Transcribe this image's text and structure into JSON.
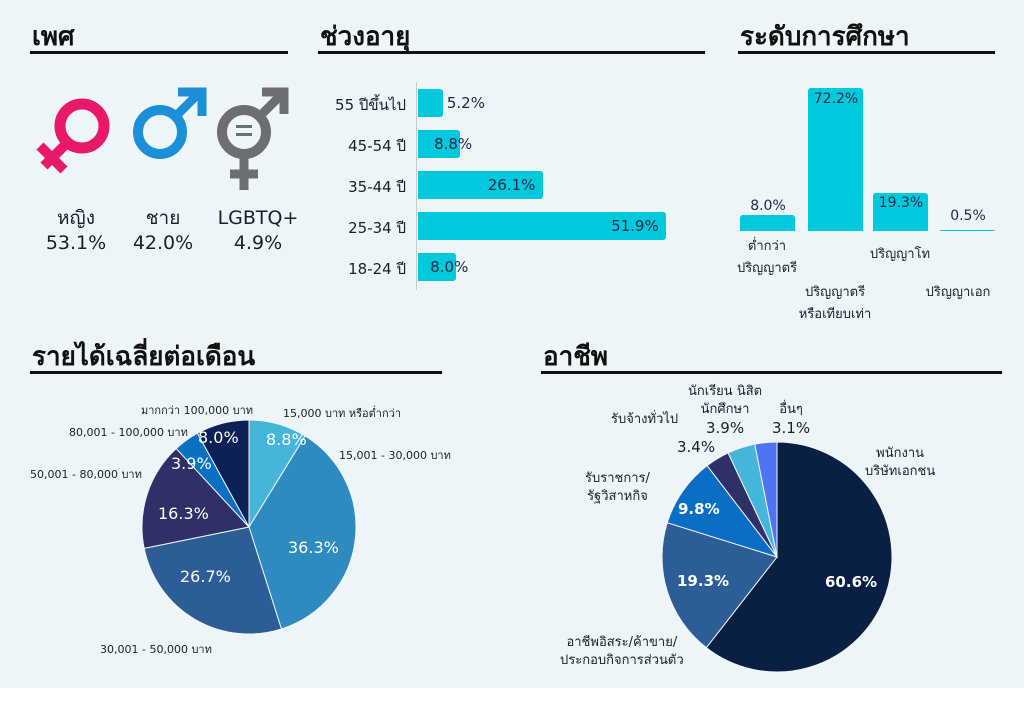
{
  "gender": {
    "title": "เพศ",
    "items": [
      {
        "label": "หญิง",
        "value": "53.1%",
        "icon": "female-icon",
        "color": "#e8196a"
      },
      {
        "label": "ชาย",
        "value": "42.0%",
        "icon": "male-icon",
        "color": "#1b8fd8"
      },
      {
        "label": "LGBTQ+",
        "value": "4.9%",
        "icon": "lgbtq-icon",
        "color": "#6d6e71"
      }
    ]
  },
  "chart_data": [
    {
      "type": "bar",
      "title": "ช่วงอายุ",
      "orientation": "horizontal",
      "categories": [
        "55 ปีขึ้นไป",
        "45-54 ปี",
        "35-44 ปี",
        "25-34 ปี",
        "18-24 ปี"
      ],
      "values": [
        5.2,
        8.8,
        26.1,
        51.9,
        8.0
      ],
      "labels": [
        "5.2%",
        "8.8%",
        "26.1%",
        "51.9%",
        "8.0%"
      ],
      "color": "#00c8dd"
    },
    {
      "type": "bar",
      "title": "ระดับการศึกษา",
      "categories": [
        "ต่ำกว่าปริญญาตรี",
        "ปริญญาตรีหรือเทียบเท่า",
        "ปริญญาโท",
        "ปริญญาเอก"
      ],
      "values": [
        8.0,
        72.2,
        19.3,
        0.5
      ],
      "labels": [
        "8.0%",
        "72.2%",
        "19.3%",
        "0.5%"
      ],
      "color": "#00c8dd"
    },
    {
      "type": "pie",
      "title": "รายได้เฉลี่ยต่อเดือน",
      "categories": [
        "15,000 บาท หรือต่ำกว่า",
        "15,001 - 30,000 บาท",
        "30,001 - 50,000 บาท",
        "50,001 - 80,000 บาท",
        "80,001 - 100,000 บาท",
        "มากกว่า 100,000 บาท"
      ],
      "values": [
        8.8,
        36.3,
        26.7,
        16.3,
        3.9,
        8.0
      ],
      "labels": [
        "8.8%",
        "36.3%",
        "26.7%",
        "16.3%",
        "3.9%",
        "8.0%"
      ],
      "colors": [
        "#45b6d9",
        "#2e8bc0",
        "#2c5d97",
        "#2f3068",
        "#0a70c2",
        "#0d2157"
      ]
    },
    {
      "type": "pie",
      "title": "อาชีพ",
      "categories": [
        "พนักงานบริษัทเอกชน",
        "อาชีพอิสระ/ค้าขาย/ประกอบกิจการส่วนตัว",
        "รับราชการ/รัฐวิสาหกิจ",
        "รับจ้างทั่วไป",
        "นักเรียน นิสิต นักศึกษา",
        "อื่นๆ"
      ],
      "values": [
        60.6,
        19.3,
        9.8,
        3.4,
        3.9,
        3.1
      ],
      "labels": [
        "60.6%",
        "19.3%",
        "9.8%",
        "3.4%",
        "3.9%",
        "3.1%"
      ],
      "colors": [
        "#0a1f44",
        "#2c5d97",
        "#0a6ec5",
        "#2f3068",
        "#45b6d9",
        "#4d74f5"
      ]
    }
  ],
  "edu_label_lines": [
    [
      "ต่ำกว่า",
      "ปริญญาตรี"
    ],
    [
      "ปริญญาตรี",
      "หรือเทียบเท่า"
    ],
    [
      "ปริญญาโท"
    ],
    [
      "ปริญญาเอก"
    ]
  ],
  "occ_label_lines": [
    [
      "พนักงาน",
      "บริษัทเอกชน"
    ],
    [
      "อาชีพอิสระ/ค้าขาย/",
      "ประกอบกิจการส่วนตัว"
    ],
    [
      "รับราชการ/",
      "รัฐวิสาหกิจ"
    ],
    [
      "รับจ้างทั่วไป"
    ],
    [
      "นักเรียน นิสิต",
      "นักศึกษา"
    ],
    [
      "อื่นๆ"
    ]
  ]
}
